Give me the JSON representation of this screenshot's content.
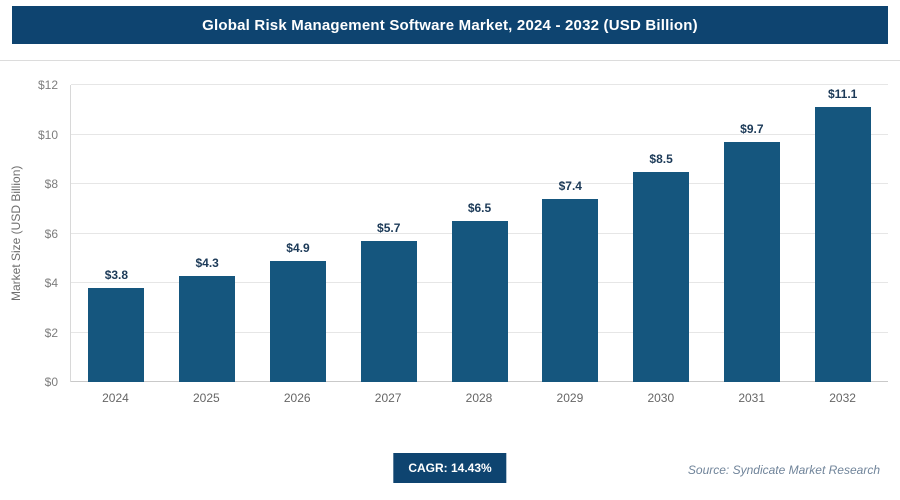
{
  "header": {
    "title": "Global Risk Management Software Market, 2024 - 2032 (USD Billion)"
  },
  "chart_data": {
    "type": "bar",
    "title": "Global Risk Management Software Market, 2024 - 2032 (USD Billion)",
    "categories": [
      "2024",
      "2025",
      "2026",
      "2027",
      "2028",
      "2029",
      "2030",
      "2031",
      "2032"
    ],
    "values": [
      3.8,
      4.3,
      4.9,
      5.7,
      6.5,
      7.4,
      8.5,
      9.7,
      11.1
    ],
    "value_labels": [
      "$3.8",
      "$4.3",
      "$4.9",
      "$5.7",
      "$6.5",
      "$7.4",
      "$8.5",
      "$9.7",
      "$11.1"
    ],
    "xlabel": "",
    "ylabel": "Market Size (USD Billion)",
    "ylim": [
      0,
      12
    ],
    "ytick_step": 2,
    "ytick_labels": [
      "$0",
      "$2",
      "$4",
      "$6",
      "$8",
      "$10",
      "$12"
    ],
    "grid": true,
    "legend": "none",
    "bar_color": "#15567e"
  },
  "footer": {
    "cagr_label": "CAGR: 14.43%",
    "source": "Source: Syndicate Market Research"
  },
  "colors": {
    "header_bg": "#0e4470",
    "bar": "#15567e",
    "badge_bg": "#0e4470",
    "gridline": "#e6e6e6"
  }
}
